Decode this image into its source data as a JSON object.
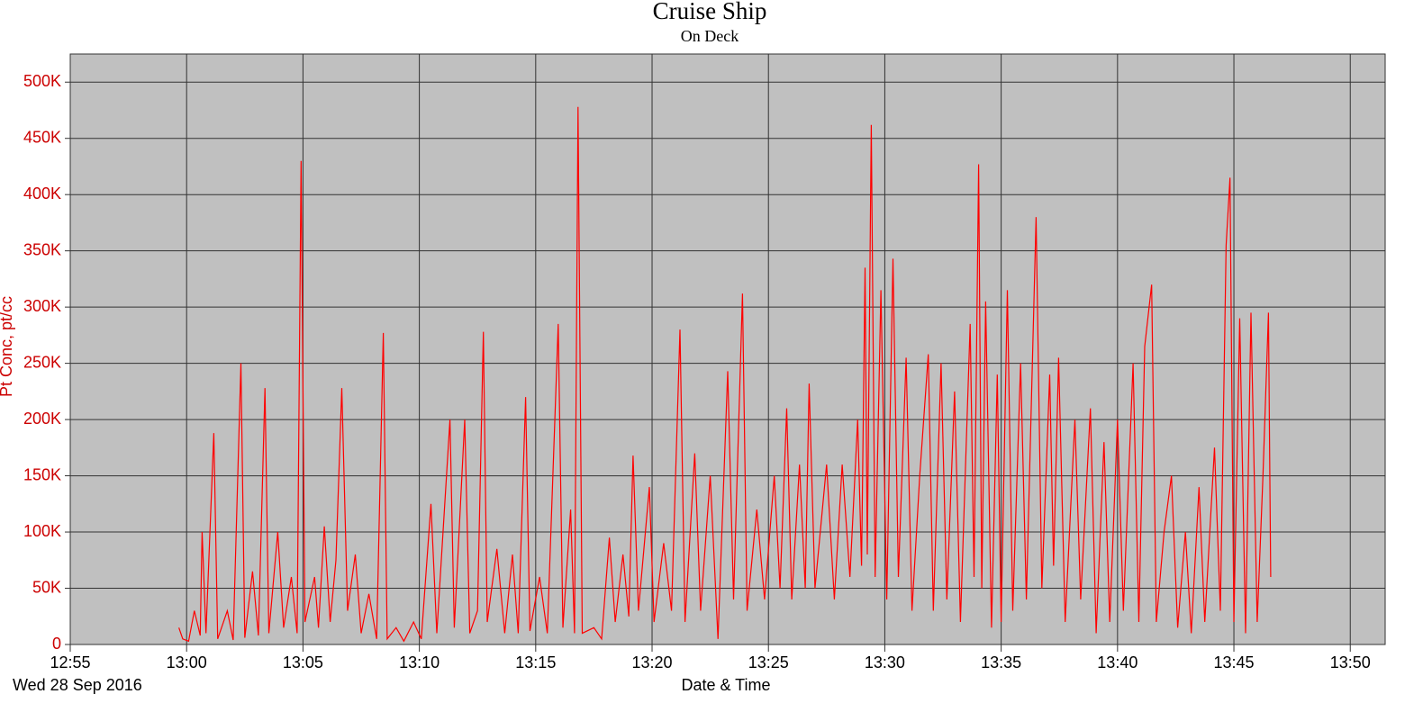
{
  "chart_data": {
    "type": "line",
    "title": "Cruise Ship",
    "subtitle": "On Deck",
    "x_label": "Date & Time",
    "date_label": "Wed 28 Sep 2016",
    "y_label": "Pt Conc, pt/cc",
    "color": "#ff0000",
    "grid": true,
    "xlim": [
      "12:55",
      "13:51:30"
    ],
    "xticks": [
      "12:55",
      "13:00",
      "13:05",
      "13:10",
      "13:15",
      "13:20",
      "13:25",
      "13:30",
      "13:35",
      "13:40",
      "13:45",
      "13:50"
    ],
    "ylim": [
      0,
      525000
    ],
    "yticks": [
      0,
      {
        "value": 50000,
        "label": "50K"
      },
      {
        "value": 100000,
        "label": "100K"
      },
      {
        "value": 150000,
        "label": "150K"
      },
      {
        "value": 200000,
        "label": "200K"
      },
      {
        "value": 250000,
        "label": "250K"
      },
      {
        "value": 300000,
        "label": "300K"
      },
      {
        "value": 350000,
        "label": "350K"
      },
      {
        "value": 400000,
        "label": "400K"
      },
      {
        "value": 450000,
        "label": "450K"
      },
      {
        "value": 500000,
        "label": "500K"
      }
    ],
    "x": [
      "12:59:40",
      "12:59:50",
      "13:00:05",
      "13:00:20",
      "13:00:35",
      "13:00:40",
      "13:00:50",
      "13:01:10",
      "13:01:20",
      "13:01:45",
      "13:02:00",
      "13:02:20",
      "13:02:30",
      "13:02:50",
      "13:03:05",
      "13:03:22",
      "13:03:32",
      "13:03:55",
      "13:04:10",
      "13:04:30",
      "13:04:45",
      "13:04:55",
      "13:05:05",
      "13:05:30",
      "13:05:40",
      "13:05:55",
      "13:06:10",
      "13:06:25",
      "13:06:40",
      "13:06:55",
      "13:07:15",
      "13:07:30",
      "13:07:50",
      "13:08:10",
      "13:08:27",
      "13:08:37",
      "13:09:00",
      "13:09:20",
      "13:09:45",
      "13:10:05",
      "13:10:30",
      "13:10:45",
      "13:11:19",
      "13:11:30",
      "13:11:57",
      "13:12:10",
      "13:12:30",
      "13:12:45",
      "13:12:55",
      "13:13:20",
      "13:13:40",
      "13:14:00",
      "13:14:15",
      "13:14:34",
      "13:14:45",
      "13:15:10",
      "13:15:30",
      "13:15:58",
      "13:16:10",
      "13:16:30",
      "13:16:40",
      "13:16:49",
      "13:17:00",
      "13:17:30",
      "13:17:50",
      "13:18:10",
      "13:18:25",
      "13:18:45",
      "13:19:00",
      "13:19:11",
      "13:19:25",
      "13:19:53",
      "13:20:05",
      "13:20:30",
      "13:20:50",
      "13:21:12",
      "13:21:25",
      "13:21:50",
      "13:22:05",
      "13:22:30",
      "13:22:50",
      "13:23:15",
      "13:23:30",
      "13:23:53",
      "13:24:05",
      "13:24:30",
      "13:24:50",
      "13:25:15",
      "13:25:30",
      "13:25:47",
      "13:26:00",
      "13:26:20",
      "13:26:35",
      "13:26:45",
      "13:27:00",
      "13:27:30",
      "13:27:50",
      "13:28:10",
      "13:28:30",
      "13:28:50",
      "13:29:00",
      "13:29:09",
      "13:29:15",
      "13:29:25",
      "13:29:35",
      "13:29:50",
      "13:30:05",
      "13:30:21",
      "13:30:35",
      "13:30:55",
      "13:31:10",
      "13:31:30",
      "13:31:52",
      "13:32:05",
      "13:32:25",
      "13:32:40",
      "13:33:00",
      "13:33:15",
      "13:33:40",
      "13:33:50",
      "13:34:02",
      "13:34:10",
      "13:34:20",
      "13:34:35",
      "13:34:50",
      "13:35:00",
      "13:35:16",
      "13:35:30",
      "13:35:50",
      "13:36:05",
      "13:36:30",
      "13:36:45",
      "13:37:05",
      "13:37:15",
      "13:37:28",
      "13:37:45",
      "13:38:10",
      "13:38:25",
      "13:38:50",
      "13:39:05",
      "13:39:25",
      "13:39:40",
      "13:40:00",
      "13:40:15",
      "13:40:40",
      "13:40:55",
      "13:41:10",
      "13:41:28",
      "13:41:40",
      "13:42:00",
      "13:42:19",
      "13:42:35",
      "13:42:55",
      "13:43:10",
      "13:43:30",
      "13:43:45",
      "13:44:10",
      "13:44:25",
      "13:44:40",
      "13:44:50",
      "13:45:00",
      "13:45:15",
      "13:45:30",
      "13:45:44",
      "13:46:00",
      "13:46:15",
      "13:46:29",
      "13:46:35"
    ],
    "values": [
      15000,
      5000,
      3000,
      30000,
      8000,
      100000,
      10000,
      188000,
      5000,
      30000,
      4000,
      250000,
      6000,
      65000,
      8000,
      228000,
      10000,
      100000,
      15000,
      60000,
      10000,
      430000,
      20000,
      60000,
      15000,
      105000,
      20000,
      75000,
      228000,
      30000,
      80000,
      10000,
      45000,
      5000,
      277000,
      5000,
      15000,
      3000,
      20000,
      5000,
      125000,
      10000,
      200000,
      15000,
      200000,
      10000,
      30000,
      278000,
      20000,
      85000,
      10000,
      80000,
      10000,
      220000,
      12000,
      60000,
      10000,
      285000,
      15000,
      120000,
      10000,
      478000,
      10000,
      15000,
      5000,
      95000,
      20000,
      80000,
      25000,
      168000,
      30000,
      140000,
      20000,
      90000,
      30000,
      280000,
      20000,
      170000,
      30000,
      150000,
      5000,
      243000,
      40000,
      312000,
      30000,
      120000,
      40000,
      150000,
      50000,
      210000,
      40000,
      160000,
      50000,
      232000,
      50000,
      160000,
      40000,
      160000,
      60000,
      200000,
      70000,
      335000,
      80000,
      462000,
      60000,
      315000,
      40000,
      343000,
      60000,
      255000,
      30000,
      150000,
      258000,
      30000,
      250000,
      40000,
      225000,
      20000,
      285000,
      60000,
      427000,
      50000,
      305000,
      15000,
      240000,
      20000,
      315000,
      30000,
      250000,
      40000,
      380000,
      50000,
      240000,
      70000,
      255000,
      20000,
      200000,
      40000,
      210000,
      10000,
      180000,
      20000,
      200000,
      30000,
      250000,
      20000,
      265000,
      320000,
      20000,
      100000,
      150000,
      15000,
      100000,
      10000,
      140000,
      20000,
      175000,
      30000,
      355000,
      415000,
      20000,
      290000,
      10000,
      295000,
      20000,
      150000,
      295000,
      60000
    ]
  }
}
